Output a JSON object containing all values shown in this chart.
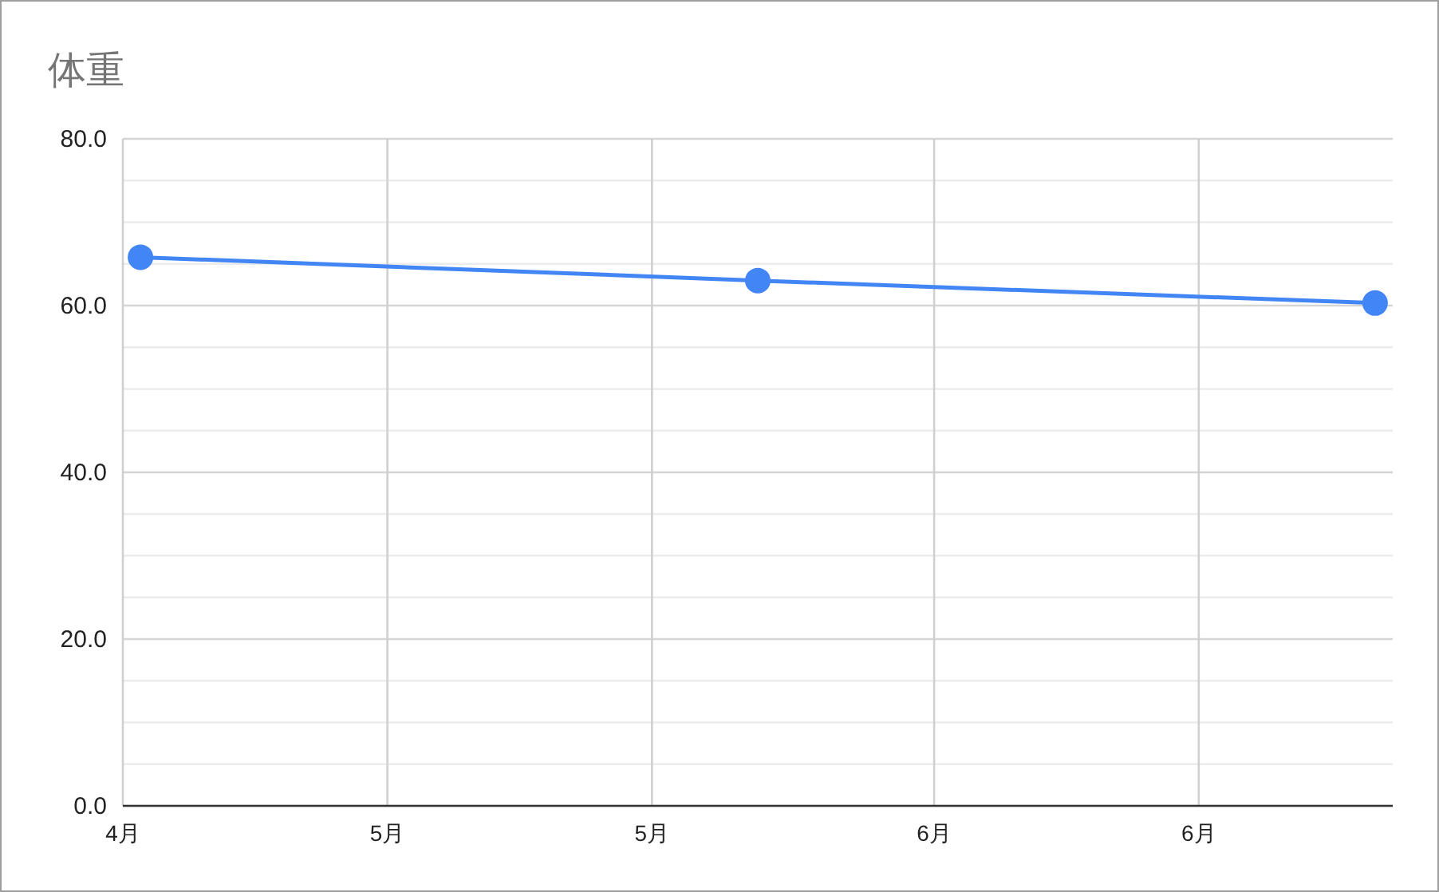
{
  "chart_data": {
    "type": "line",
    "title": "体重",
    "x": [
      "--04-17",
      "--05-22",
      "--06-26"
    ],
    "series": [
      {
        "color": "#4285f4",
        "values": [
          65.8,
          63.0,
          60.3
        ]
      }
    ],
    "xlim": [
      "--04-16",
      "--06-27"
    ],
    "xticks": [
      {
        "value": "--04-16",
        "label": "4月"
      },
      {
        "value": "--05-01",
        "label": "5月"
      },
      {
        "value": "--05-16",
        "label": "5月"
      },
      {
        "value": "--06-01",
        "label": "6月"
      },
      {
        "value": "--06-16",
        "label": "6月"
      }
    ],
    "ylim": [
      0,
      80
    ],
    "yticks": [
      {
        "value": 0,
        "label": "0.0"
      },
      {
        "value": 5,
        "label": null
      },
      {
        "value": 10,
        "label": null
      },
      {
        "value": 15,
        "label": null
      },
      {
        "value": 20,
        "label": "20.0"
      },
      {
        "value": 25,
        "label": null
      },
      {
        "value": 30,
        "label": null
      },
      {
        "value": 35,
        "label": null
      },
      {
        "value": 40,
        "label": "40.0"
      },
      {
        "value": 45,
        "label": null
      },
      {
        "value": 50,
        "label": null
      },
      {
        "value": 55,
        "label": null
      },
      {
        "value": 60,
        "label": "60.0"
      },
      {
        "value": 65,
        "label": null
      },
      {
        "value": 70,
        "label": null
      },
      {
        "value": 75,
        "label": null
      },
      {
        "value": 80,
        "label": "80.0"
      }
    ],
    "grid": true,
    "marker": "circle",
    "line_style": "solid"
  }
}
